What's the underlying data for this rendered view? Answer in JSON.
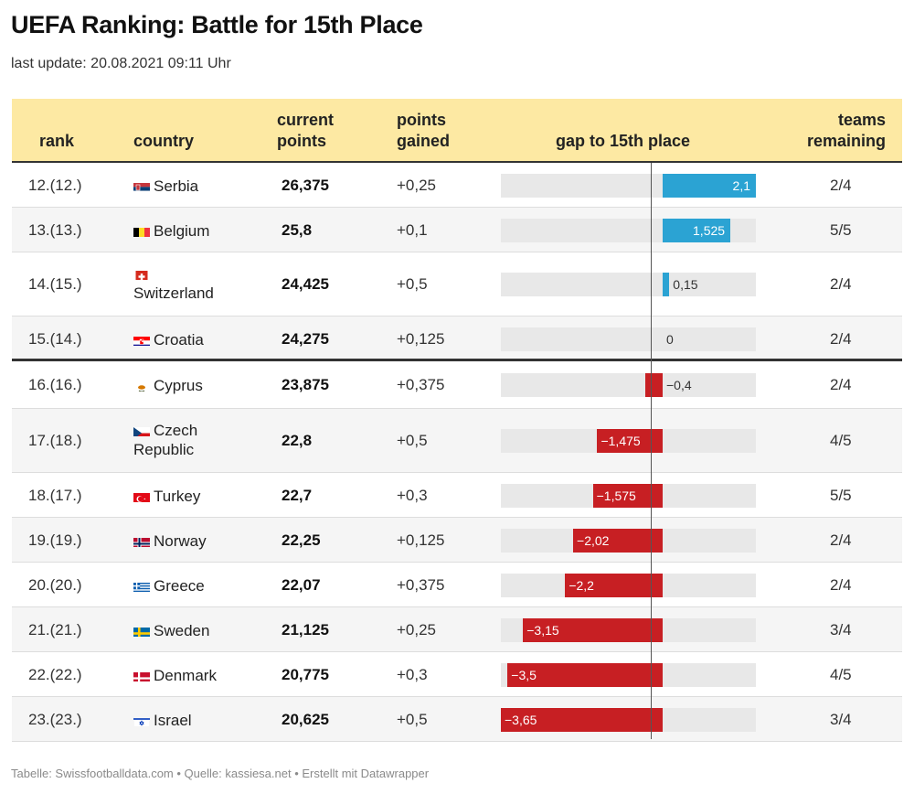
{
  "title": "UEFA Ranking: Battle for 15th Place",
  "subtitle": "last update: 20.08.2021 09:11 Uhr",
  "footer": "Tabelle: Swissfootballdata.com • Quelle: kassiesa.net • Erstellt mit Datawrapper",
  "colors": {
    "header_bg": "#fde9a3",
    "positive": "#2ba3d3",
    "negative": "#c71f23",
    "track": "#e8e8e8"
  },
  "header": {
    "rank": "rank",
    "country": "country",
    "points_line1": "current",
    "points_line2": "points",
    "gained_line1": "points",
    "gained_line2": "gained",
    "gap": "gap to 15th place",
    "teams_line1": "teams",
    "teams_line2": "remaining"
  },
  "chart_data": {
    "type": "table",
    "title": "UEFA Ranking: Battle for 15th Place",
    "columns": [
      "rank",
      "country",
      "current points",
      "points gained",
      "gap to 15th place",
      "teams remaining"
    ],
    "gap_range": [
      -3.65,
      2.1
    ],
    "rows": [
      {
        "rank": "12.(12.)",
        "country": "Serbia",
        "flag": "serbia-flag-icon",
        "points": "26,375",
        "gained": "+0,25",
        "gap": 2.1,
        "gap_label": "2,1",
        "teams": "2/4"
      },
      {
        "rank": "13.(13.)",
        "country": "Belgium",
        "flag": "belgium-flag-icon",
        "points": "25,8",
        "gained": "+0,1",
        "gap": 1.525,
        "gap_label": "1,525",
        "teams": "5/5"
      },
      {
        "rank": "14.(15.)",
        "country": "Switzerland",
        "flag": "switzerland-flag-icon",
        "points": "24,425",
        "gained": "+0,5",
        "gap": 0.15,
        "gap_label": "0,15",
        "teams": "2/4"
      },
      {
        "rank": "15.(14.)",
        "country": "Croatia",
        "flag": "croatia-flag-icon",
        "points": "24,275",
        "gained": "+0,125",
        "gap": 0,
        "gap_label": "0",
        "teams": "2/4"
      },
      {
        "rank": "16.(16.)",
        "country": "Cyprus",
        "flag": "cyprus-flag-icon",
        "points": "23,875",
        "gained": "+0,375",
        "gap": -0.4,
        "gap_label": "−0,4",
        "teams": "2/4"
      },
      {
        "rank": "17.(18.)",
        "country": "Czech Republic",
        "flag": "czech-flag-icon",
        "points": "22,8",
        "gained": "+0,5",
        "gap": -1.475,
        "gap_label": "−1,475",
        "teams": "4/5"
      },
      {
        "rank": "18.(17.)",
        "country": "Turkey",
        "flag": "turkey-flag-icon",
        "points": "22,7",
        "gained": "+0,3",
        "gap": -1.575,
        "gap_label": "−1,575",
        "teams": "5/5"
      },
      {
        "rank": "19.(19.)",
        "country": "Norway",
        "flag": "norway-flag-icon",
        "points": "22,25",
        "gained": "+0,125",
        "gap": -2.02,
        "gap_label": "−2,02",
        "teams": "2/4"
      },
      {
        "rank": "20.(20.)",
        "country": "Greece",
        "flag": "greece-flag-icon",
        "points": "22,07",
        "gained": "+0,375",
        "gap": -2.2,
        "gap_label": "−2,2",
        "teams": "2/4"
      },
      {
        "rank": "21.(21.)",
        "country": "Sweden",
        "flag": "sweden-flag-icon",
        "points": "21,125",
        "gained": "+0,25",
        "gap": -3.15,
        "gap_label": "−3,15",
        "teams": "3/4"
      },
      {
        "rank": "22.(22.)",
        "country": "Denmark",
        "flag": "denmark-flag-icon",
        "points": "20,775",
        "gained": "+0,3",
        "gap": -3.5,
        "gap_label": "−3,5",
        "teams": "4/5"
      },
      {
        "rank": "23.(23.)",
        "country": "Israel",
        "flag": "israel-flag-icon",
        "points": "20,625",
        "gained": "+0,5",
        "gap": -3.65,
        "gap_label": "−3,65",
        "teams": "3/4"
      }
    ]
  }
}
